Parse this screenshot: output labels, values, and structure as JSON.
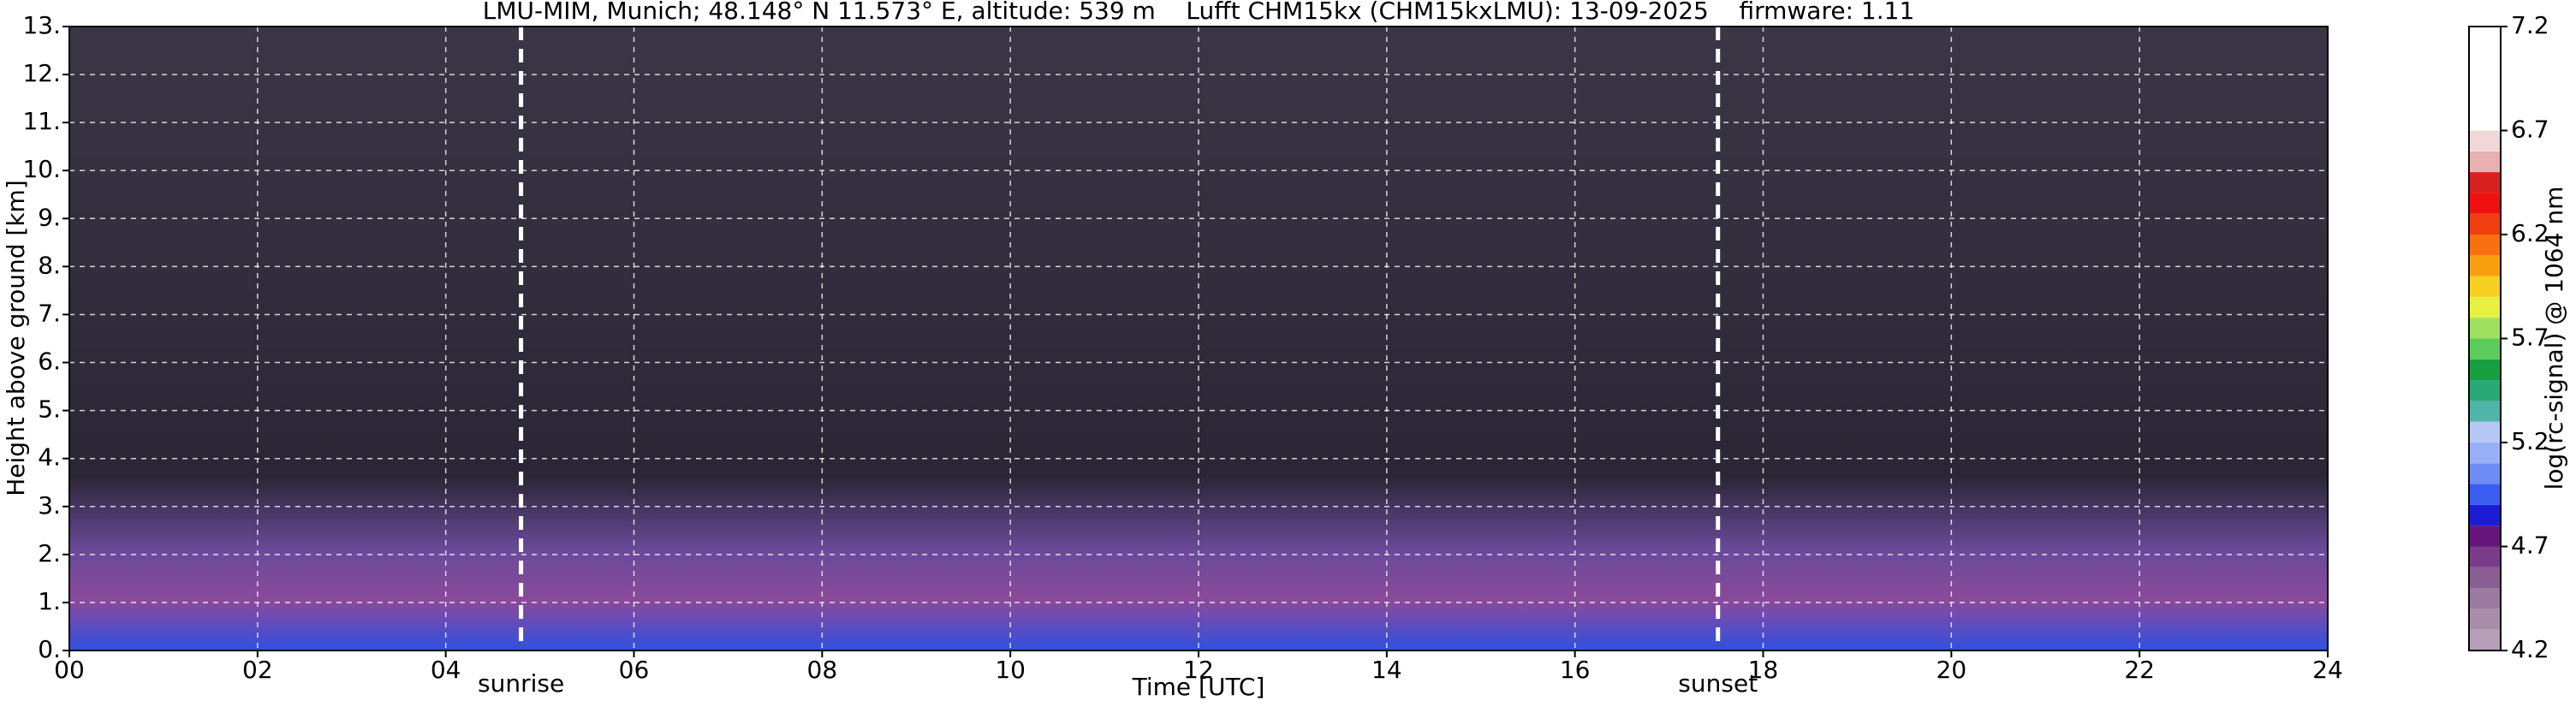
{
  "chart_data": {
    "type": "heatmap",
    "title": "LMU-MIM, Munich; 48.148° N 11.573° E, altitude: 539 m    Lufft CHM15kx (CHM15kxLMU): 13-09-2025    firmware: 1.11",
    "x_label": "Time [UTC]",
    "y_label": "Height above ground [km]",
    "xlim": [
      0,
      24
    ],
    "xticks": [
      {
        "value": 0,
        "label": "00"
      },
      {
        "value": 2,
        "label": "02"
      },
      {
        "value": 4,
        "label": "04"
      },
      {
        "value": 6,
        "label": "06"
      },
      {
        "value": 8,
        "label": "08"
      },
      10,
      12,
      14,
      16,
      18,
      20,
      22,
      24
    ],
    "ylim": [
      0,
      13
    ],
    "yticks": [
      {
        "value": 0,
        "label": "0."
      },
      {
        "value": 1,
        "label": "1."
      },
      {
        "value": 2,
        "label": "2."
      },
      {
        "value": 3,
        "label": "3."
      },
      {
        "value": 4,
        "label": "4."
      },
      {
        "value": 5,
        "label": "5."
      },
      {
        "value": 6,
        "label": "6."
      },
      {
        "value": 7,
        "label": "7."
      },
      {
        "value": 8,
        "label": "8."
      },
      {
        "value": 9,
        "label": "9."
      },
      {
        "value": 10,
        "label": "10."
      },
      {
        "value": 11,
        "label": "11."
      },
      {
        "value": 12,
        "label": "12."
      },
      {
        "value": 13,
        "label": "13."
      }
    ],
    "grid": true,
    "annotations": [
      {
        "text": "sunrise",
        "x": 4.8
      },
      {
        "text": "sunset",
        "x": 17.52
      }
    ],
    "colorbar": {
      "label": "log(rc-signal) @ 1064 nm",
      "lim": [
        4.2,
        7.2
      ],
      "ticks": [
        4.2,
        4.7,
        5.2,
        5.7,
        6.2,
        6.7,
        7.2
      ],
      "bounds": [
        4.2,
        4.3,
        4.4,
        4.5,
        4.6,
        4.7,
        4.8,
        4.9,
        5.0,
        5.1,
        5.2,
        5.3,
        5.4,
        5.5,
        5.6,
        5.7,
        5.8,
        5.9,
        6.0,
        6.1,
        6.2,
        6.3,
        6.4,
        6.5,
        6.6,
        6.7,
        7.2
      ],
      "colors": [
        "#b5a0b7",
        "#a88ea9",
        "#9a7aa0",
        "#8a5e94",
        "#7a3c8a",
        "#65157c",
        "#1c1cd6",
        "#3a5cf0",
        "#6d8cf5",
        "#98b0f5",
        "#b8c8f5",
        "#4fb5a8",
        "#2aa878",
        "#18a040",
        "#5ccc5c",
        "#a0e060",
        "#e8f040",
        "#f8d020",
        "#f8a010",
        "#f87010",
        "#f04010",
        "#f01010",
        "#d82020",
        "#e8b0b0",
        "#f0d8d8",
        "#ffffff"
      ]
    }
  }
}
